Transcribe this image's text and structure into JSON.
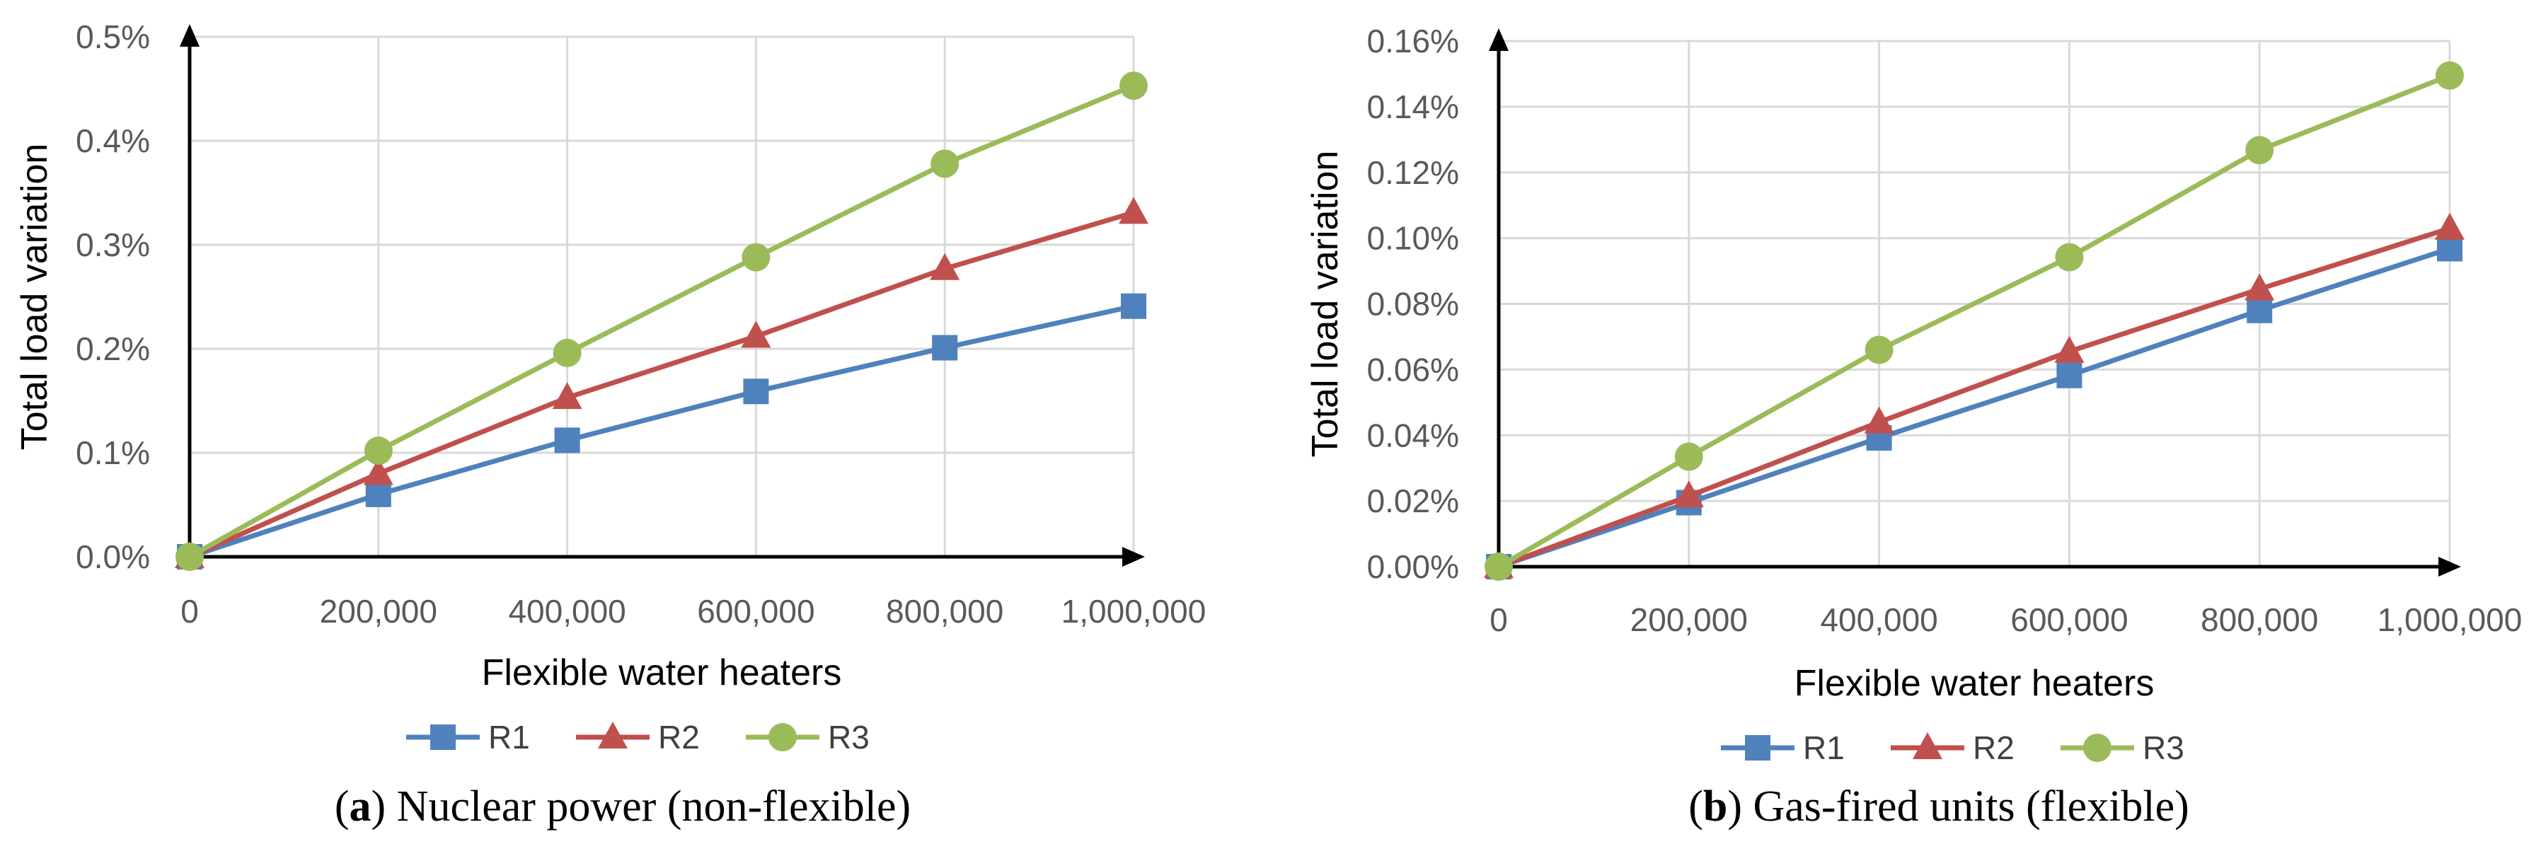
{
  "colors": {
    "R1": "#4F81BD",
    "R2": "#C0504D",
    "R3": "#9BBB59",
    "grid": "#D9D9D9",
    "axis": "#000000"
  },
  "chart_data": [
    {
      "type": "line",
      "title": "",
      "caption_letter": "a",
      "caption_text": " Nuclear power (non-flexible)",
      "xlabel": "Flexible water heaters",
      "ylabel": "Total load variation",
      "x": [
        0,
        200000,
        400000,
        600000,
        800000,
        1000000
      ],
      "x_tick_labels": [
        "0",
        "200,000",
        "400,000",
        "600,000",
        "800,000",
        "1,000,000"
      ],
      "ylim": [
        0,
        0.5
      ],
      "y_ticks": [
        0,
        0.1,
        0.2,
        0.3,
        0.4,
        0.5
      ],
      "y_tick_labels": [
        "0.0%",
        "0.1%",
        "0.2%",
        "0.3%",
        "0.4%",
        "0.5%"
      ],
      "y_unit": "%",
      "grid": true,
      "legend_position": "bottom",
      "series": [
        {
          "name": "R1",
          "marker": "square",
          "values": [
            0,
            0.06,
            0.112,
            0.159,
            0.201,
            0.241
          ]
        },
        {
          "name": "R2",
          "marker": "triangle",
          "values": [
            0,
            0.08,
            0.153,
            0.212,
            0.277,
            0.331
          ]
        },
        {
          "name": "R3",
          "marker": "circle",
          "values": [
            0,
            0.102,
            0.196,
            0.288,
            0.378,
            0.453
          ]
        }
      ]
    },
    {
      "type": "line",
      "title": "",
      "caption_letter": "b",
      "caption_text": " Gas-fired units (flexible)",
      "xlabel": "Flexible water heaters",
      "ylabel": "Total load variation",
      "x": [
        0,
        200000,
        400000,
        600000,
        800000,
        1000000
      ],
      "x_tick_labels": [
        "0",
        "200,000",
        "400,000",
        "600,000",
        "800,000",
        "1,000,000"
      ],
      "ylim": [
        0,
        0.16
      ],
      "y_ticks": [
        0,
        0.02,
        0.04,
        0.06,
        0.08,
        0.1,
        0.12,
        0.14,
        0.16
      ],
      "y_tick_labels": [
        "0.00%",
        "0.02%",
        "0.04%",
        "0.06%",
        "0.08%",
        "0.10%",
        "0.12%",
        "0.14%",
        "0.16%"
      ],
      "y_unit": "%",
      "grid": true,
      "legend_position": "bottom",
      "series": [
        {
          "name": "R1",
          "marker": "square",
          "values": [
            0,
            0.0195,
            0.0392,
            0.0582,
            0.078,
            0.0968
          ]
        },
        {
          "name": "R2",
          "marker": "triangle",
          "values": [
            0,
            0.0215,
            0.044,
            0.0655,
            0.0845,
            0.103
          ]
        },
        {
          "name": "R3",
          "marker": "circle",
          "values": [
            0,
            0.0335,
            0.066,
            0.0942,
            0.1268,
            0.1495
          ]
        }
      ]
    }
  ]
}
